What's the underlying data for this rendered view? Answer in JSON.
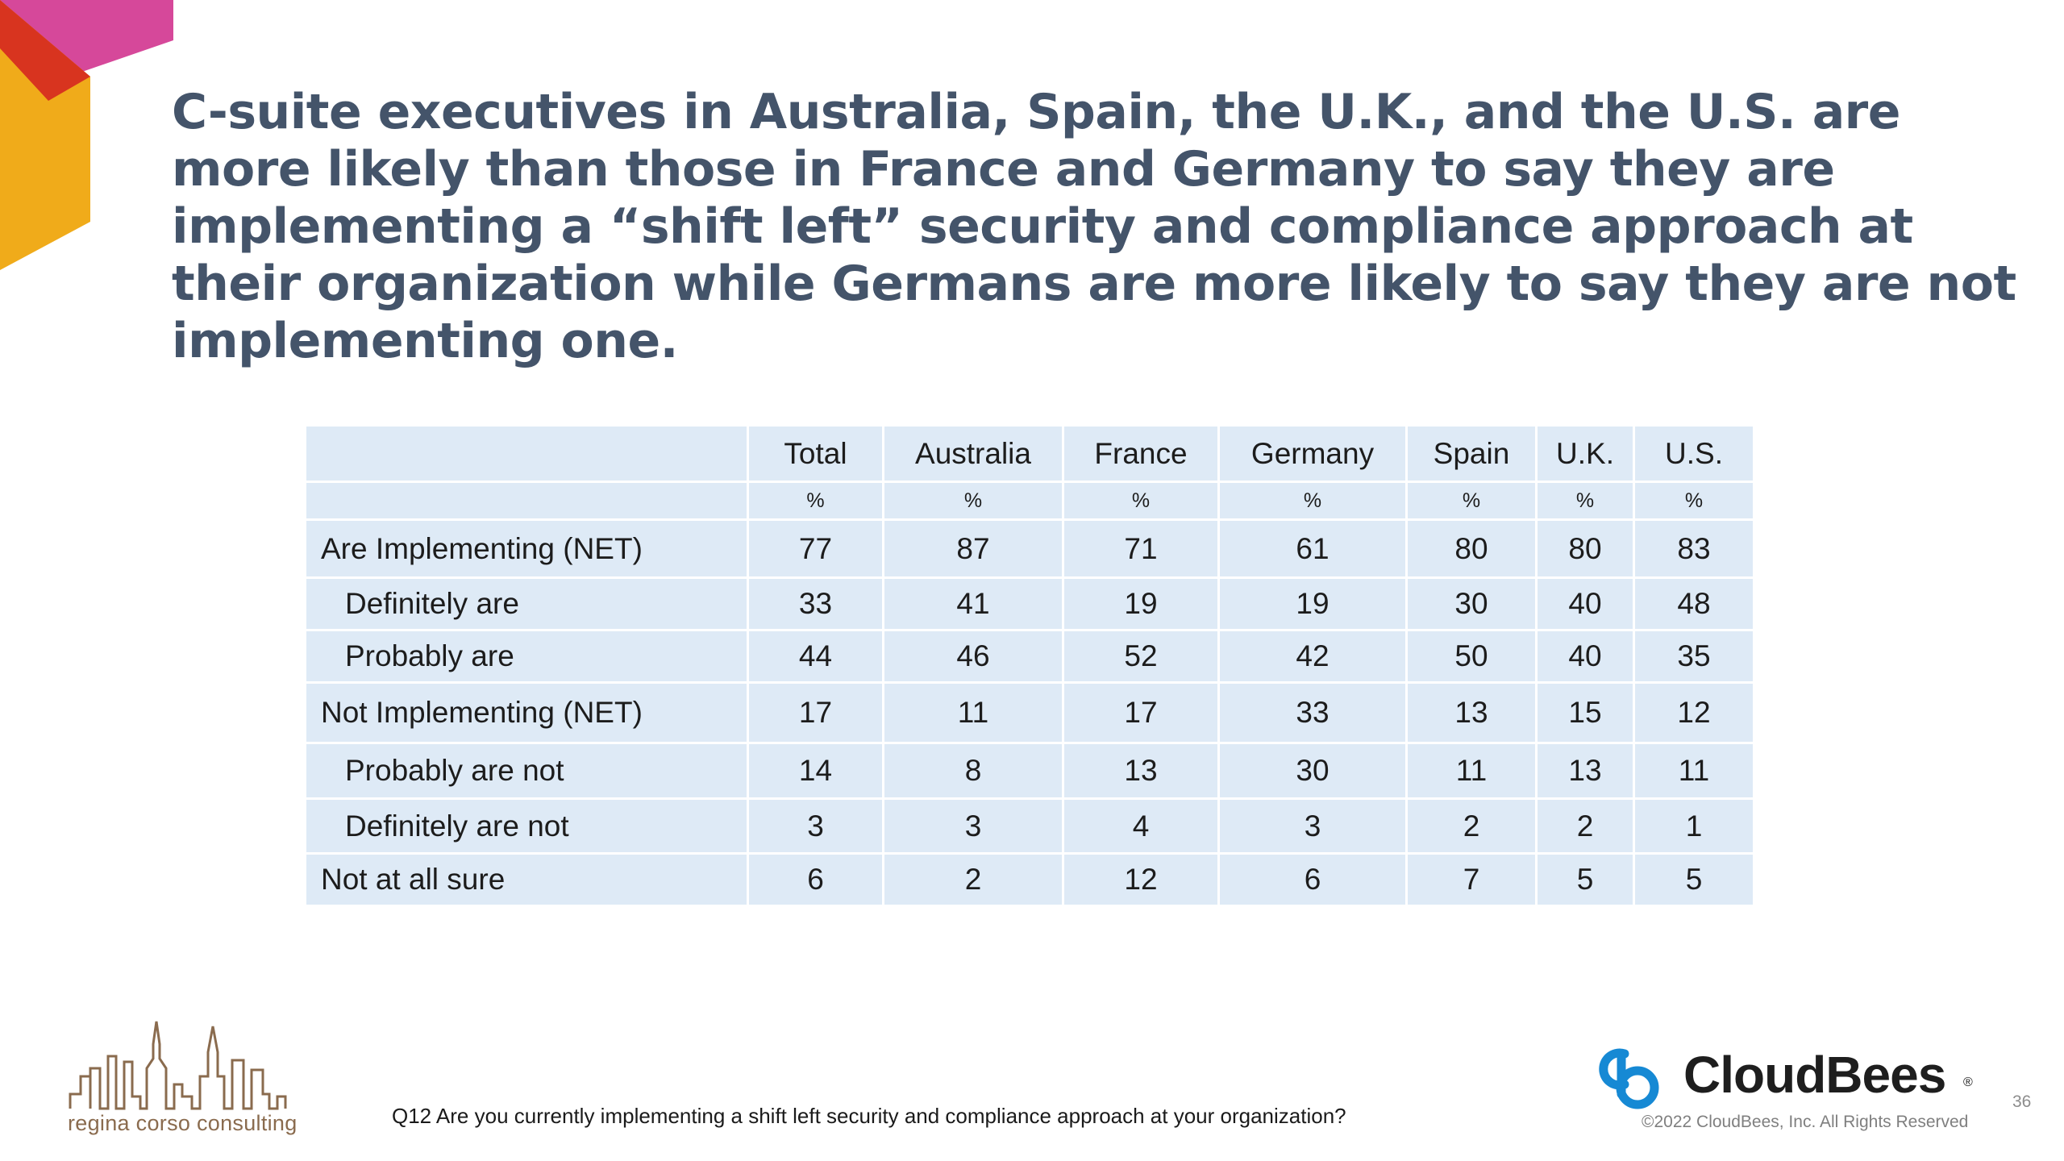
{
  "slide": {
    "title": "C-suite executives in Australia, Spain, the U.K., and the U.S. are more likely than those in France and Germany to say they are implementing a “shift left” security and compliance approach at their organization while Germans are more likely to say they are not implementing one.",
    "footnote": "Q12 Are you currently implementing a shift left security and compliance approach at your organization?",
    "page_number": "36"
  },
  "table": {
    "columns": [
      "Total",
      "Australia",
      "France",
      "Germany",
      "Spain",
      "U.K.",
      "U.S."
    ],
    "unit_row": [
      "%",
      "%",
      "%",
      "%",
      "%",
      "%",
      "%"
    ],
    "rows": [
      {
        "label": "Are Implementing (NET)",
        "values": [
          "77",
          "87",
          "71",
          "61",
          "80",
          "80",
          "83"
        ]
      },
      {
        "label": "Definitely are",
        "values": [
          "33",
          "41",
          "19",
          "19",
          "30",
          "40",
          "48"
        ]
      },
      {
        "label": "Probably are",
        "values": [
          "44",
          "46",
          "52",
          "42",
          "50",
          "40",
          "35"
        ]
      },
      {
        "label": "Not Implementing (NET)",
        "values": [
          "17",
          "11",
          "17",
          "33",
          "13",
          "15",
          "12"
        ]
      },
      {
        "label": "Probably are not",
        "values": [
          "14",
          "8",
          "13",
          "30",
          "11",
          "13",
          "11"
        ]
      },
      {
        "label": "Definitely are not",
        "values": [
          "3",
          "3",
          "4",
          "3",
          "2",
          "2",
          "1"
        ]
      },
      {
        "label": "Not at all sure",
        "values": [
          "6",
          "2",
          "12",
          "6",
          "7",
          "5",
          "5"
        ]
      }
    ]
  },
  "logos": {
    "regina": {
      "text": "regina corso consulting",
      "icon": "city-skyline-icon"
    },
    "cloudbees": {
      "name": "CloudBees",
      "registered_mark": "®",
      "icon": "cloudbees-cb-icon",
      "copyright": "©2022 CloudBees, Inc. All Rights Reserved"
    }
  },
  "colors": {
    "title": "#44546a",
    "table_cell": "#deeaf6",
    "corner_magenta": "#d6489a",
    "corner_red": "#d8341f",
    "corner_orange": "#f0ab1a",
    "cloudbees_blue": "#1689d4",
    "regina_brown": "#8a6b4e"
  }
}
